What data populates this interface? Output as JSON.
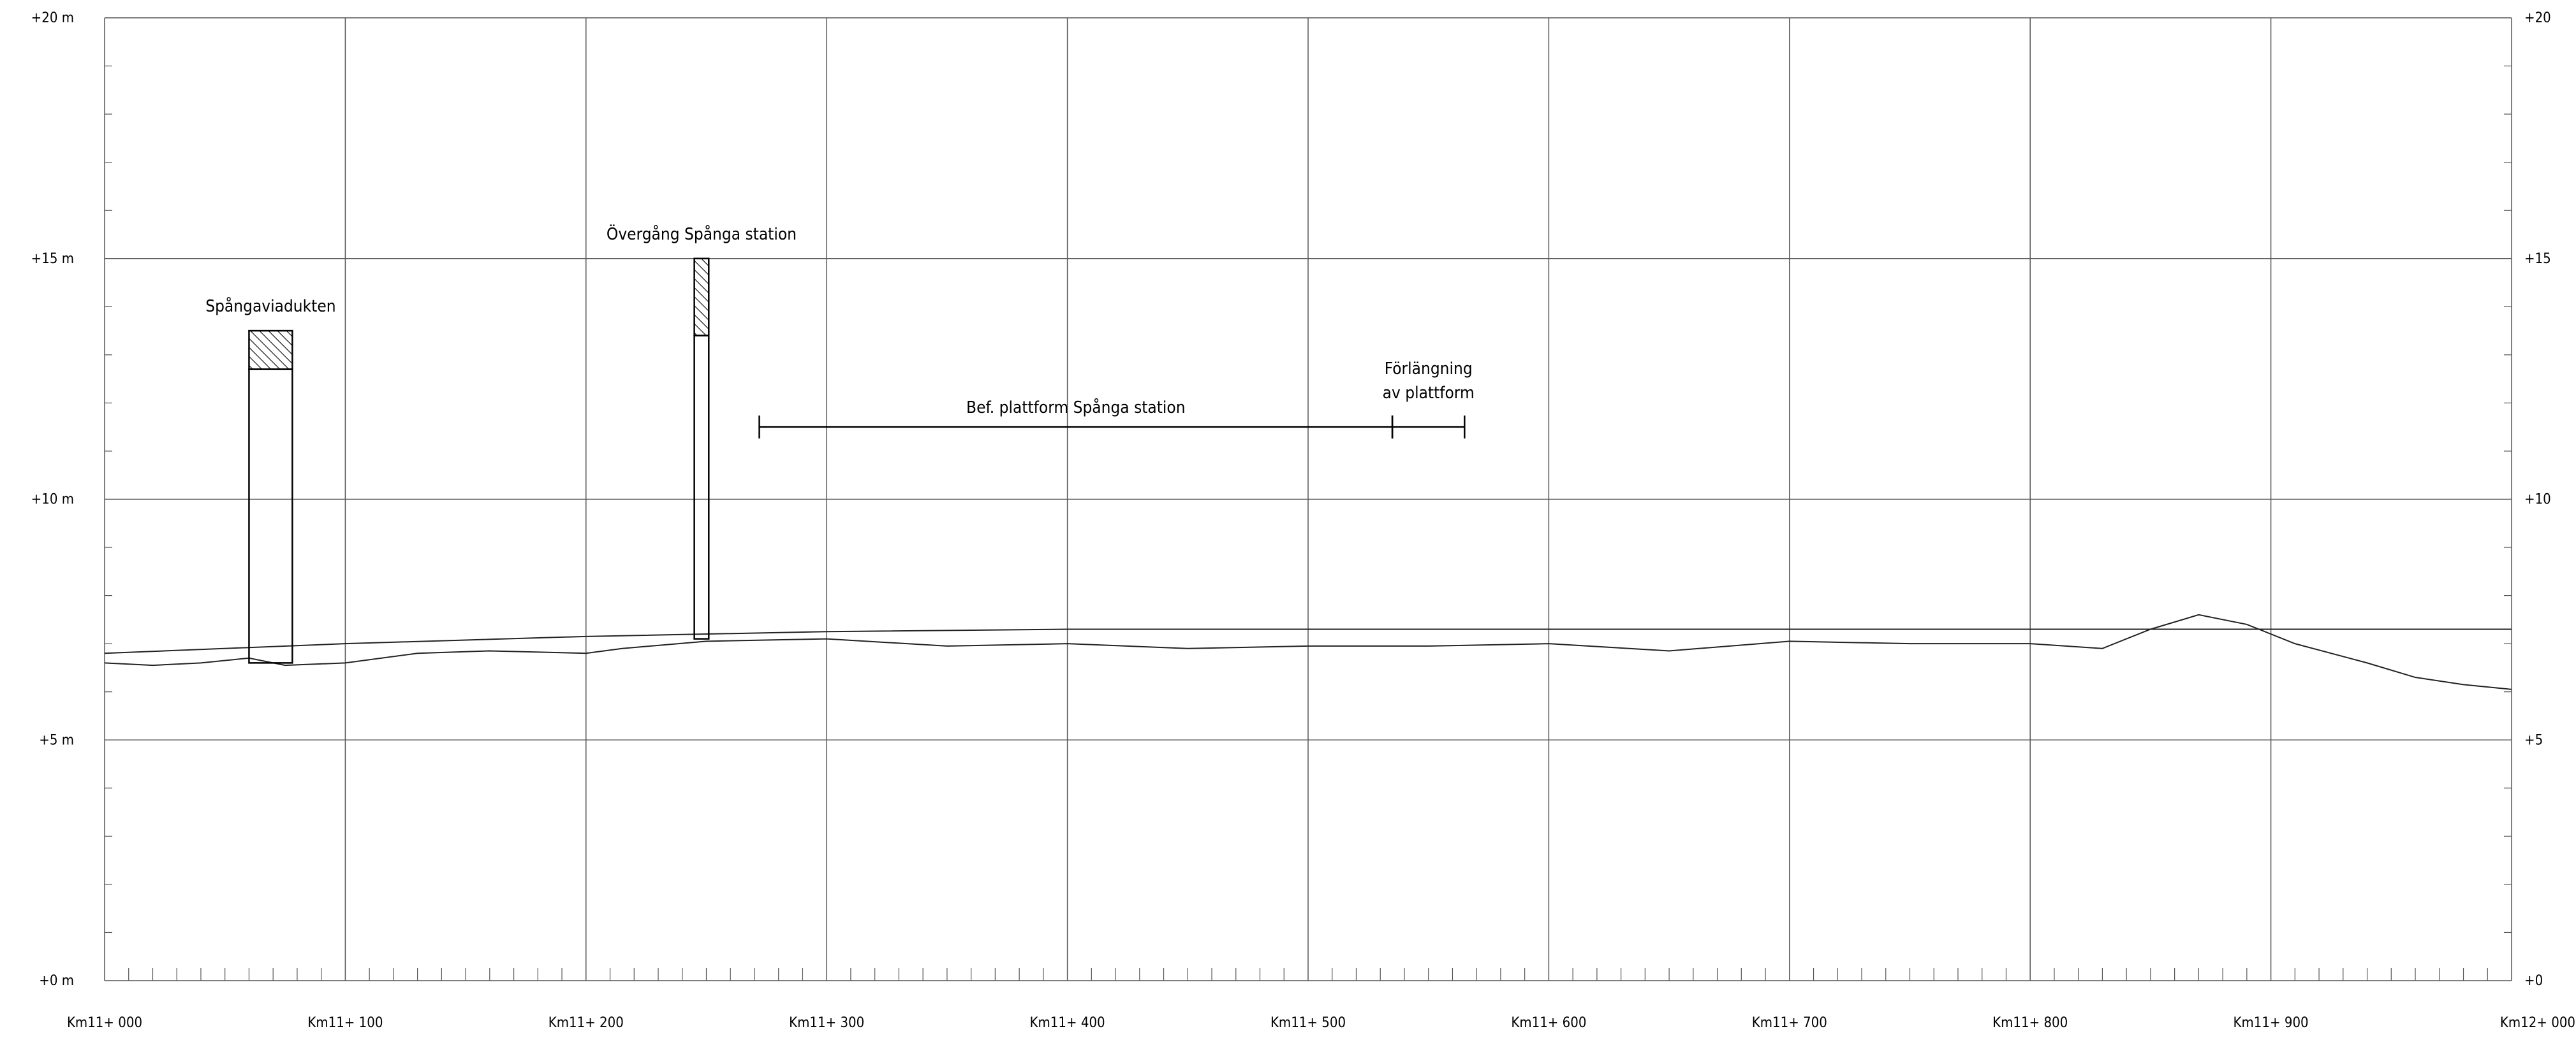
{
  "chart_data": {
    "type": "line",
    "x_unit": "m",
    "x_range": [
      0,
      1000
    ],
    "y_range": [
      0,
      20
    ],
    "grid": true,
    "y_ticks_left": [
      "+0 m",
      "+5 m",
      "+10 m",
      "+15 m",
      "+20 m"
    ],
    "y_ticks_right": [
      "+0",
      "+5",
      "+10",
      "+15",
      "+20"
    ],
    "x_ticks": [
      "Km11+ 000",
      "Km11+ 100",
      "Km11+ 200",
      "Km11+ 300",
      "Km11+ 400",
      "Km11+ 500",
      "Km11+ 600",
      "Km11+ 700",
      "Km11+ 800",
      "Km11+ 900",
      "Km12+ 000"
    ],
    "series": [
      {
        "role": "track profile",
        "x": [
          0,
          100,
          200,
          300,
          400,
          500,
          600,
          700,
          800,
          900,
          1000
        ],
        "y": [
          6.8,
          7.0,
          7.15,
          7.25,
          7.3,
          7.3,
          7.3,
          7.3,
          7.3,
          7.3,
          7.3
        ]
      },
      {
        "role": "ground surface",
        "x": [
          0,
          20,
          40,
          60,
          75,
          100,
          130,
          160,
          200,
          215,
          250,
          300,
          350,
          400,
          450,
          500,
          550,
          600,
          650,
          700,
          750,
          800,
          830,
          850,
          870,
          890,
          910,
          940,
          960,
          980,
          1000
        ],
        "y": [
          6.6,
          6.55,
          6.6,
          6.7,
          6.55,
          6.6,
          6.8,
          6.85,
          6.8,
          6.9,
          7.05,
          7.1,
          6.95,
          7.0,
          6.9,
          6.95,
          6.95,
          7.0,
          6.85,
          7.05,
          7.0,
          7.0,
          6.9,
          7.3,
          7.6,
          7.4,
          7.0,
          6.6,
          6.3,
          6.15,
          6.05
        ]
      }
    ],
    "features": [
      {
        "label": "Spångaviadukten",
        "x_start": 60,
        "x_end": 78,
        "y_bottom": 6.6,
        "deck_bottom": 12.7,
        "deck_top": 13.5
      },
      {
        "label": "Övergång Spånga station",
        "x_start": 245,
        "x_end": 251,
        "y_bottom": 7.1,
        "deck_bottom": 13.4,
        "deck_top": 15.0
      }
    ],
    "dimension_lines": [
      {
        "label": "Bef. plattform Spånga station",
        "x_start": 272,
        "x_end": 535,
        "y": 11.5
      },
      {
        "label_lines": [
          "Förlängning",
          "av plattform"
        ],
        "x_start": 535,
        "x_end": 565,
        "y": 11.5
      }
    ]
  }
}
